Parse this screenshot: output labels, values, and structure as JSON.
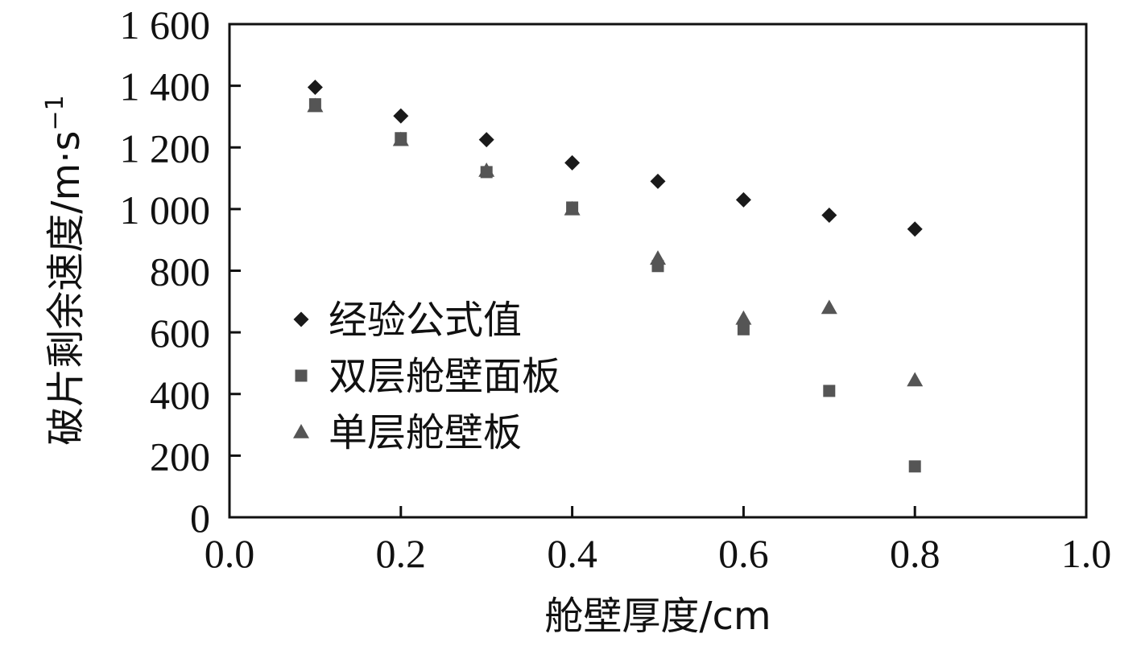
{
  "chart_data": {
    "type": "scatter",
    "xlabel": "舱壁厚度/cm",
    "ylabel": "破片剩余速度/m·s",
    "ylabel_sup": "−1",
    "xlim": [
      0,
      1.0
    ],
    "ylim": [
      0,
      1600
    ],
    "x_ticks": [
      0.0,
      0.2,
      0.4,
      0.6,
      0.8,
      1.0
    ],
    "x_tick_labels": [
      "0.0",
      "0.2",
      "0.4",
      "0.6",
      "0.8",
      "1.0"
    ],
    "y_ticks": [
      0,
      200,
      400,
      600,
      800,
      1000,
      1200,
      1400,
      1600
    ],
    "y_tick_labels": [
      "0",
      "200",
      "400",
      "600",
      "800",
      "1 000",
      "1 200",
      "1 400",
      "1 600"
    ],
    "legend_position": "left-middle",
    "grid": false,
    "series": [
      {
        "name": "经验公式值",
        "marker": "diamond",
        "color": "#1a1a1a",
        "x": [
          0.1,
          0.2,
          0.3,
          0.4,
          0.5,
          0.6,
          0.7,
          0.8
        ],
        "y": [
          1395,
          1302,
          1225,
          1150,
          1090,
          1030,
          980,
          935
        ]
      },
      {
        "name": "双层舱壁面板",
        "marker": "square",
        "color": "#555555",
        "x": [
          0.1,
          0.2,
          0.3,
          0.4,
          0.5,
          0.6,
          0.7,
          0.8
        ],
        "y": [
          1340,
          1230,
          1120,
          1005,
          815,
          610,
          410,
          165
        ]
      },
      {
        "name": "单层舱壁板",
        "marker": "triangle",
        "color": "#555555",
        "x": [
          0.1,
          0.2,
          0.3,
          0.4,
          0.5,
          0.6,
          0.7,
          0.8
        ],
        "y": [
          1335,
          1225,
          1125,
          1000,
          840,
          645,
          680,
          445
        ]
      }
    ]
  }
}
